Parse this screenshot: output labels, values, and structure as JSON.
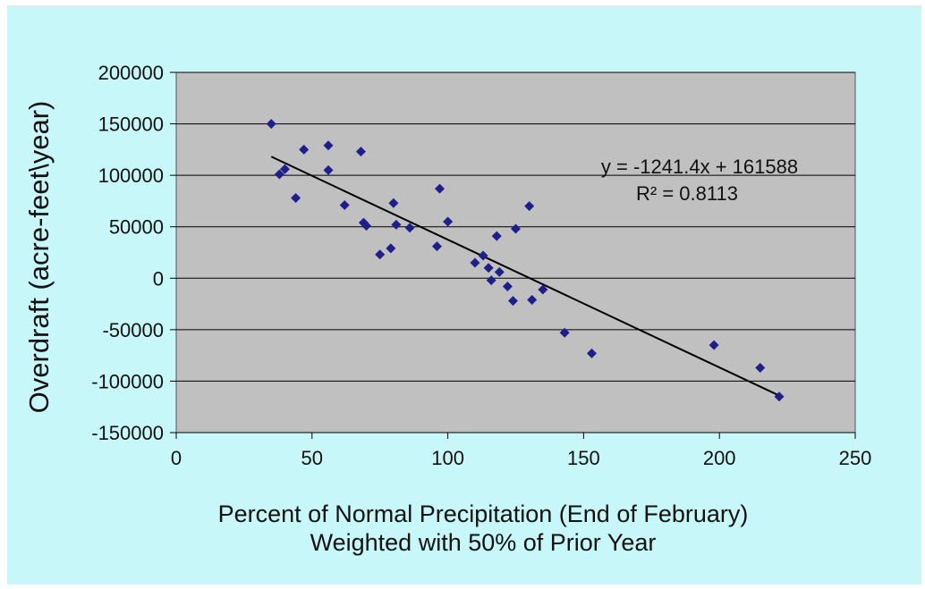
{
  "colors": {
    "background": "#c8f7fa",
    "plot_area": "#c0c0c0",
    "marker": "#1f1f8c",
    "trendline": "#000000",
    "gridline": "#000000"
  },
  "chart_data": {
    "type": "scatter",
    "title": "",
    "xlabel_line1": "Percent of Normal Precipitation (End of February)",
    "xlabel_line2": "Weighted with 50% of Prior Year",
    "ylabel": "Overdraft (acre-feet\\year)",
    "xlim": [
      0,
      250
    ],
    "ylim": [
      -150000,
      200000
    ],
    "xticks": [
      0,
      50,
      100,
      150,
      200,
      250
    ],
    "yticks": [
      -150000,
      -100000,
      -50000,
      0,
      50000,
      100000,
      150000,
      200000
    ],
    "grid": "horizontal",
    "marker": "diamond",
    "points": [
      {
        "x": 35,
        "y": 150000
      },
      {
        "x": 38,
        "y": 101000
      },
      {
        "x": 40,
        "y": 106000
      },
      {
        "x": 44,
        "y": 78000
      },
      {
        "x": 47,
        "y": 125000
      },
      {
        "x": 56,
        "y": 129000
      },
      {
        "x": 56,
        "y": 105000
      },
      {
        "x": 62,
        "y": 71000
      },
      {
        "x": 68,
        "y": 123000
      },
      {
        "x": 69,
        "y": 54000
      },
      {
        "x": 70,
        "y": 51000
      },
      {
        "x": 75,
        "y": 23000
      },
      {
        "x": 79,
        "y": 29000
      },
      {
        "x": 80,
        "y": 73000
      },
      {
        "x": 81,
        "y": 52000
      },
      {
        "x": 86,
        "y": 49000
      },
      {
        "x": 96,
        "y": 31000
      },
      {
        "x": 97,
        "y": 87000
      },
      {
        "x": 100,
        "y": 55000
      },
      {
        "x": 110,
        "y": 15000
      },
      {
        "x": 113,
        "y": 22000
      },
      {
        "x": 115,
        "y": 10000
      },
      {
        "x": 116,
        "y": -2000
      },
      {
        "x": 118,
        "y": 41000
      },
      {
        "x": 119,
        "y": 6000
      },
      {
        "x": 122,
        "y": -8000
      },
      {
        "x": 124,
        "y": -22000
      },
      {
        "x": 125,
        "y": 48000
      },
      {
        "x": 130,
        "y": 70000
      },
      {
        "x": 131,
        "y": -21000
      },
      {
        "x": 135,
        "y": -11000
      },
      {
        "x": 143,
        "y": -53000
      },
      {
        "x": 153,
        "y": -73000
      },
      {
        "x": 198,
        "y": -65000
      },
      {
        "x": 215,
        "y": -87000
      },
      {
        "x": 222,
        "y": -115000
      }
    ],
    "trendline": {
      "slope": -1241.4,
      "intercept": 161588,
      "x_range": [
        35,
        222
      ],
      "equation_label": "y = -1241.4x + 161588",
      "r2_label": "R² = 0.8113"
    }
  }
}
